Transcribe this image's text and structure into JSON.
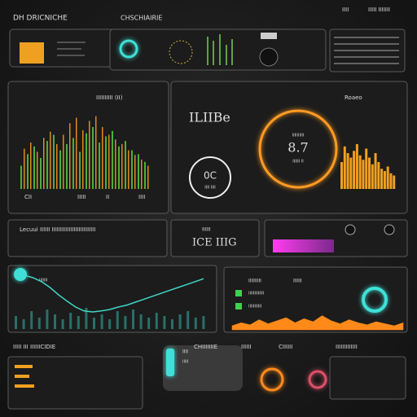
{
  "header": {
    "title": "DH DRICNICHE",
    "subtitle": "CHSCHIAIRIE",
    "top_right": [
      "IIII",
      "IIIII IIIIIII"
    ]
  },
  "panels": {
    "left_chart_label": "IIIIIIIIII (II)",
    "left_chart_axis": [
      "CII",
      "IIIII",
      "II",
      "IIII"
    ],
    "big_text": "ILIIBe",
    "small_dial": "0C",
    "small_dial_sub": "IIII IIII",
    "ring_value": "8.7",
    "ring_caption": "IIIIIIIIII",
    "ring_sub": "IIIIII II",
    "right_label": "Roaeo",
    "strip_text": "Lecuui IIIIII IIIIIIIIIIIIIIIIIIIIIIIIII",
    "center_readout": "ICE IIIG",
    "center_readout_top": "IIIIII",
    "line_label": "IIIIIII",
    "area_labels": [
      "IIIIIIIII",
      "IIIIII",
      "IIIIIIIIIIIII",
      "IIIIIIIIIII"
    ],
    "bottom_labels": [
      "IIIII III IIIIIICIDIE",
      "CHIIIIIIIE",
      "IIIIII",
      "CIIIIII",
      "IIIIIIIIIIIII"
    ],
    "bottom_bar_label": "IIII",
    "bottom_bar_sub": "IIIII"
  },
  "charts": {
    "green_bars": {
      "color": "#4caf3a",
      "values": [
        30,
        45,
        55,
        40,
        62,
        70,
        50,
        58,
        66,
        48,
        72,
        80,
        60,
        68,
        75,
        55,
        62,
        50,
        45,
        35
      ]
    },
    "orange_bars": {
      "color": "#e08a1e",
      "values": [
        52,
        60,
        48,
        66,
        74,
        58,
        70,
        85,
        92,
        76,
        88,
        94,
        80,
        70,
        64,
        58,
        50,
        44,
        38,
        30
      ]
    },
    "right_bars": {
      "color": "#f0a020",
      "values": [
        60,
        95,
        80,
        70,
        85,
        100,
        75,
        65,
        90,
        70,
        55,
        80,
        60,
        45,
        40,
        50,
        35,
        30
      ]
    },
    "teal_line": {
      "color": "#3fd6c6",
      "values": [
        95,
        90,
        82,
        70,
        55,
        42,
        30,
        22,
        20,
        22,
        25,
        30,
        34,
        40,
        46,
        52,
        58,
        64,
        70,
        76,
        82,
        88
      ]
    },
    "teal_bars": {
      "color": "#2a6f6a",
      "values": [
        40,
        30,
        55,
        35,
        60,
        45,
        30,
        50,
        40,
        65,
        35,
        45,
        30,
        55,
        40,
        60,
        45,
        35,
        50,
        40,
        30,
        45,
        55,
        35,
        40
      ]
    },
    "orange_area": {
      "color": "#ff8a1a",
      "values": [
        20,
        35,
        25,
        50,
        30,
        45,
        60,
        35,
        55,
        40,
        70,
        45,
        30,
        50,
        35,
        25,
        40,
        30,
        20,
        35
      ]
    }
  }
}
